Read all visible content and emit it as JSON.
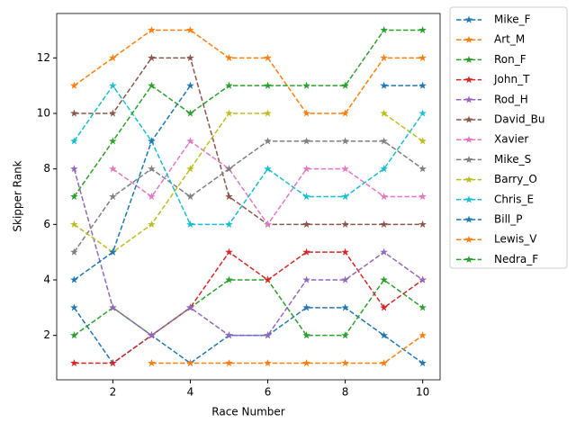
{
  "chart_data": {
    "type": "line",
    "xlabel": "Race Number",
    "ylabel": "Skipper Rank",
    "x": [
      1,
      2,
      3,
      4,
      5,
      6,
      7,
      8,
      9,
      10
    ],
    "xlim": [
      0.55,
      10.45
    ],
    "ylim": [
      0.4,
      13.6
    ],
    "xticks": [
      2,
      4,
      6,
      8,
      10
    ],
    "yticks": [
      2,
      4,
      6,
      8,
      10,
      12
    ],
    "legend": "outside-right",
    "series": [
      {
        "name": "Mike_F",
        "color": "#1f77b4",
        "values": [
          3,
          1,
          2,
          1,
          2,
          2,
          3,
          3,
          2,
          1
        ]
      },
      {
        "name": "Art_M",
        "color": "#ff7f0e",
        "values": [
          11,
          12,
          13,
          13,
          12,
          12,
          10,
          10,
          12,
          12
        ]
      },
      {
        "name": "Ron_F",
        "color": "#2ca02c",
        "values": [
          2,
          3,
          2,
          3,
          4,
          4,
          2,
          2,
          4,
          3
        ]
      },
      {
        "name": "John_T",
        "color": "#d62728",
        "values": [
          1,
          1,
          2,
          3,
          5,
          4,
          5,
          5,
          3,
          4
        ]
      },
      {
        "name": "Rod_H",
        "color": "#9467bd",
        "values": [
          8,
          3,
          2,
          3,
          2,
          2,
          4,
          4,
          5,
          4
        ]
      },
      {
        "name": "David_Bu",
        "color": "#8c564b",
        "values": [
          10,
          10,
          12,
          12,
          7,
          6,
          6,
          6,
          6,
          6
        ]
      },
      {
        "name": "Xavier",
        "color": "#e377c2",
        "values": [
          null,
          8,
          7,
          9,
          8,
          6,
          8,
          8,
          7,
          7
        ]
      },
      {
        "name": "Mike_S",
        "color": "#7f7f7f",
        "values": [
          5,
          7,
          8,
          7,
          8,
          9,
          9,
          9,
          9,
          8
        ]
      },
      {
        "name": "Barry_O",
        "color": "#bcbd22",
        "values": [
          6,
          5,
          6,
          8,
          10,
          10,
          null,
          null,
          10,
          9
        ]
      },
      {
        "name": "Chris_E",
        "color": "#17becf",
        "values": [
          9,
          11,
          9,
          6,
          6,
          8,
          7,
          7,
          8,
          10
        ]
      },
      {
        "name": "Bill_P",
        "color": "#1f77b4",
        "values": [
          4,
          5,
          9,
          11,
          null,
          null,
          null,
          null,
          11,
          11
        ]
      },
      {
        "name": "Lewis_V",
        "color": "#ff7f0e",
        "values": [
          null,
          null,
          1,
          1,
          1,
          1,
          1,
          1,
          1,
          2
        ]
      },
      {
        "name": "Nedra_F",
        "color": "#2ca02c",
        "values": [
          7,
          9,
          11,
          10,
          11,
          11,
          11,
          11,
          13,
          13
        ]
      }
    ]
  }
}
